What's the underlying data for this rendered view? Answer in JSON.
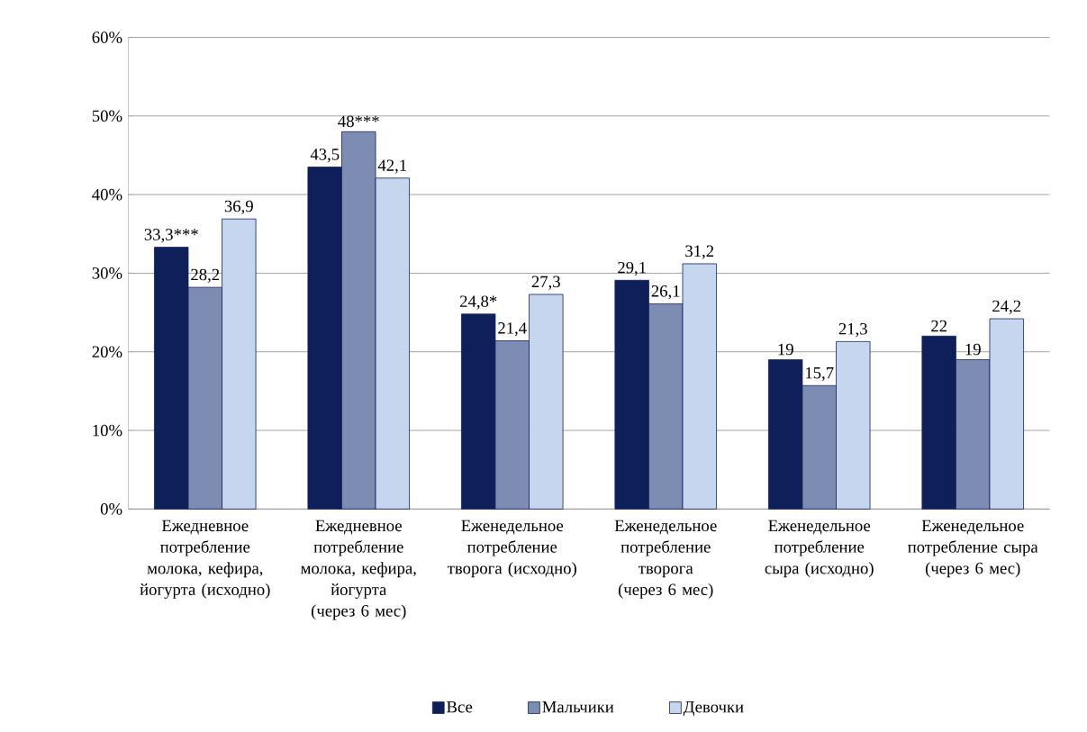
{
  "chart_data": {
    "type": "bar",
    "categories": [
      "Ежедневное потребление молока, кефира, йогурта (исходно)",
      "Ежедневное потребление молока, кефира, йогурта (через 6 мес)",
      "Еженедельное потребление творога (исходно)",
      "Еженедельное потребление творога (через 6 мес)",
      "Еженедельное потребление сыра (исходно)",
      "Еженедельное потребление сыра (через 6 мес)"
    ],
    "series": [
      {
        "name": "Все",
        "color": "#0f1f5a",
        "values": [
          33.3,
          43.5,
          24.8,
          29.1,
          19,
          22
        ],
        "value_labels": [
          "33,3***",
          "43,5",
          "24,8*",
          "29,1",
          "19",
          "22"
        ]
      },
      {
        "name": "Мальчики",
        "color": "#7d8cb2",
        "values": [
          28.2,
          48,
          21.4,
          26.1,
          15.7,
          19
        ],
        "value_labels": [
          "28,2",
          "48***",
          "21,4",
          "26,1",
          "15,7",
          "19"
        ]
      },
      {
        "name": "Девочки",
        "color": "#c6d6ee",
        "values": [
          36.9,
          42.1,
          27.3,
          31.2,
          21.3,
          24.2
        ],
        "value_labels": [
          "36,9",
          "42,1",
          "27,3",
          "31,2",
          "21,3",
          "24,2"
        ]
      }
    ],
    "ylim": [
      0,
      60
    ],
    "yticks": [
      {
        "value": 0,
        "label": "0%"
      },
      {
        "value": 10,
        "label": "10%"
      },
      {
        "value": 20,
        "label": "20%"
      },
      {
        "value": 30,
        "label": "30%"
      },
      {
        "value": 40,
        "label": "40%"
      },
      {
        "value": 50,
        "label": "50%"
      },
      {
        "value": 60,
        "label": "60%"
      }
    ],
    "grid": "y",
    "legend": "bottom"
  }
}
